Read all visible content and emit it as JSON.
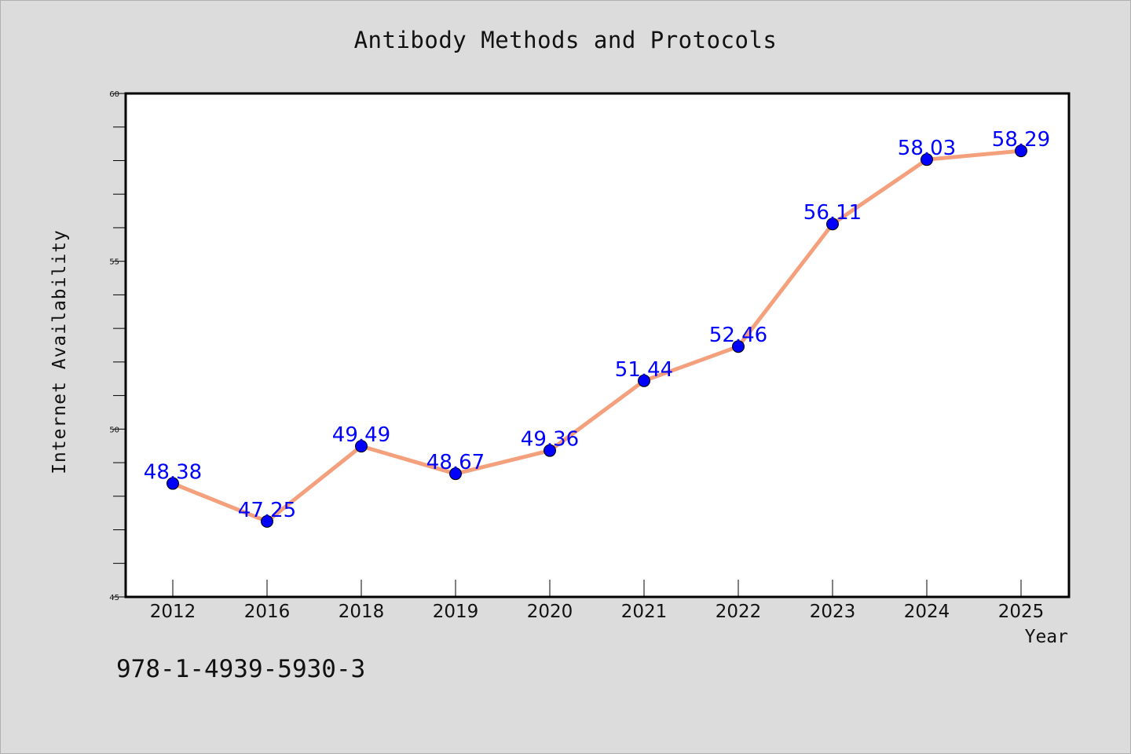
{
  "chart_data": {
    "type": "line",
    "title": "Antibody Methods and Protocols",
    "xlabel": "Year",
    "ylabel": "Internet Availability",
    "categories": [
      "2012",
      "2016",
      "2018",
      "2019",
      "2020",
      "2021",
      "2022",
      "2023",
      "2024",
      "2025"
    ],
    "series": [
      {
        "values": [
          48.38,
          47.25,
          49.49,
          48.67,
          49.36,
          51.44,
          52.46,
          56.11,
          58.03,
          58.29
        ]
      }
    ],
    "data_labels": [
      "48.38",
      "47.25",
      "49.49",
      "48.67",
      "49.36",
      "51.44",
      "52.46",
      "56.11",
      "58.03",
      "58.29"
    ],
    "ylim": [
      45,
      60
    ],
    "yticks": [
      45,
      50,
      55,
      60
    ],
    "grid": false,
    "colors": {
      "line": "#f4a07c",
      "marker": "#0000ff",
      "label": "#0000ff",
      "background": "#dcdcdc",
      "plot_area": "#ffffff"
    }
  },
  "annotation": {
    "isbn": "978-1-4939-5930-3"
  }
}
